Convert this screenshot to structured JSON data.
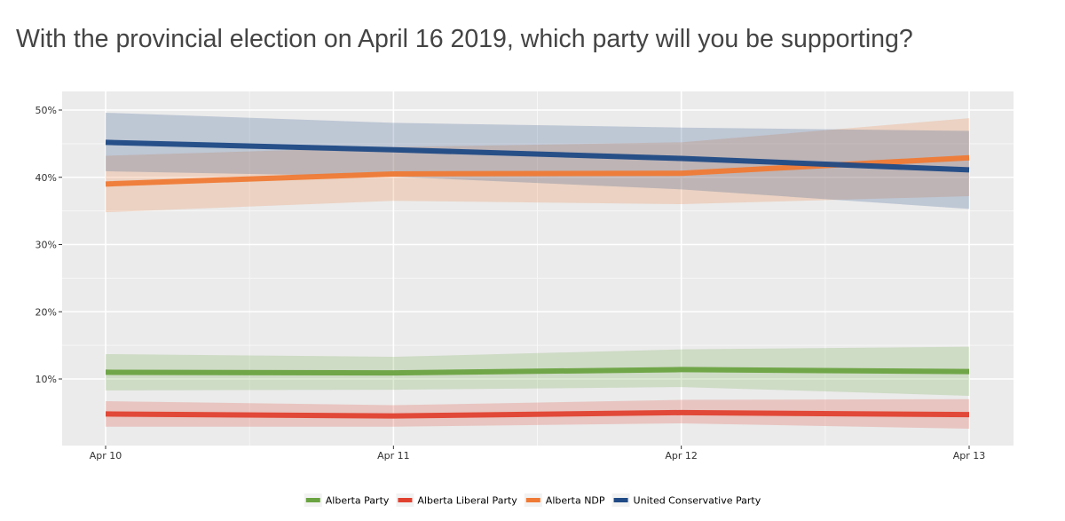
{
  "chart_data": {
    "type": "line",
    "title": "With the provincial election on April 16 2019, which party will you be supporting?",
    "xlabel": "",
    "ylabel": "",
    "x": [
      "Apr 10",
      "Apr 11",
      "Apr 12",
      "Apr 13"
    ],
    "ylim": [
      0,
      50
    ],
    "yticks": [
      10,
      20,
      30,
      40,
      50
    ],
    "ytick_labels": [
      "10%",
      "20%",
      "30%",
      "40%",
      "50%"
    ],
    "grid": true,
    "legend_position": "bottom",
    "series": [
      {
        "name": "Alberta Party",
        "color": "#6aa341",
        "values": [
          11.0,
          10.9,
          11.4,
          11.1
        ],
        "lower": [
          8.3,
          8.4,
          8.8,
          7.5
        ],
        "upper": [
          13.7,
          13.3,
          14.4,
          14.8
        ]
      },
      {
        "name": "Alberta Liberal Party",
        "color": "#e0412f",
        "values": [
          4.8,
          4.5,
          5.0,
          4.7
        ],
        "lower": [
          2.9,
          2.9,
          3.4,
          2.6
        ],
        "upper": [
          6.7,
          6.1,
          6.9,
          7.0
        ]
      },
      {
        "name": "Alberta NDP",
        "color": "#ef7a35",
        "values": [
          39.0,
          40.5,
          40.6,
          42.9
        ],
        "lower": [
          34.8,
          36.5,
          36.0,
          37.2
        ],
        "upper": [
          43.2,
          44.5,
          45.2,
          48.8
        ]
      },
      {
        "name": "United Conservative Party",
        "color": "#1f4a85",
        "values": [
          45.2,
          44.1,
          42.8,
          41.1
        ],
        "lower": [
          40.9,
          40.1,
          38.2,
          35.3
        ],
        "upper": [
          49.6,
          48.1,
          47.4,
          46.9
        ]
      }
    ]
  }
}
